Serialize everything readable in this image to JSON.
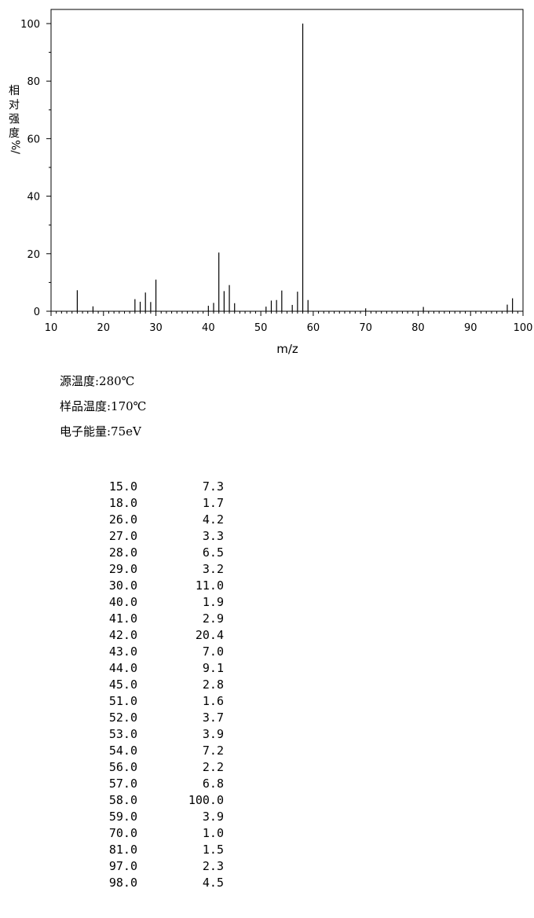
{
  "chart_data": {
    "type": "bar",
    "ylabel": "相对强度/%",
    "xlabel": "m/z",
    "xlim": [
      10,
      100
    ],
    "ylim": [
      0,
      100
    ],
    "x_ticks": [
      "10",
      "20",
      "30",
      "40",
      "50",
      "60",
      "70",
      "80",
      "90",
      "100"
    ],
    "y_ticks": [
      "0",
      "20",
      "40",
      "60",
      "80",
      "100"
    ],
    "grid": false,
    "points": [
      {
        "mz": 15.0,
        "intensity": 7.3
      },
      {
        "mz": 18.0,
        "intensity": 1.7
      },
      {
        "mz": 26.0,
        "intensity": 4.2
      },
      {
        "mz": 27.0,
        "intensity": 3.3
      },
      {
        "mz": 28.0,
        "intensity": 6.5
      },
      {
        "mz": 29.0,
        "intensity": 3.2
      },
      {
        "mz": 30.0,
        "intensity": 11.0
      },
      {
        "mz": 40.0,
        "intensity": 1.9
      },
      {
        "mz": 41.0,
        "intensity": 2.9
      },
      {
        "mz": 42.0,
        "intensity": 20.4
      },
      {
        "mz": 43.0,
        "intensity": 7.0
      },
      {
        "mz": 44.0,
        "intensity": 9.1
      },
      {
        "mz": 45.0,
        "intensity": 2.8
      },
      {
        "mz": 51.0,
        "intensity": 1.6
      },
      {
        "mz": 52.0,
        "intensity": 3.7
      },
      {
        "mz": 53.0,
        "intensity": 3.9
      },
      {
        "mz": 54.0,
        "intensity": 7.2
      },
      {
        "mz": 56.0,
        "intensity": 2.2
      },
      {
        "mz": 57.0,
        "intensity": 6.8
      },
      {
        "mz": 58.0,
        "intensity": 100.0
      },
      {
        "mz": 59.0,
        "intensity": 3.9
      },
      {
        "mz": 70.0,
        "intensity": 1.0
      },
      {
        "mz": 81.0,
        "intensity": 1.5
      },
      {
        "mz": 97.0,
        "intensity": 2.3
      },
      {
        "mz": 98.0,
        "intensity": 4.5
      }
    ]
  },
  "info": {
    "source_temp": "源温度:280℃",
    "sample_temp": "样品温度:170℃",
    "electron_energy": "电子能量:75eV"
  },
  "table": [
    {
      "mz": "15.0",
      "abundance": "7.3"
    },
    {
      "mz": "18.0",
      "abundance": "1.7"
    },
    {
      "mz": "26.0",
      "abundance": "4.2"
    },
    {
      "mz": "27.0",
      "abundance": "3.3"
    },
    {
      "mz": "28.0",
      "abundance": "6.5"
    },
    {
      "mz": "29.0",
      "abundance": "3.2"
    },
    {
      "mz": "30.0",
      "abundance": "11.0"
    },
    {
      "mz": "40.0",
      "abundance": "1.9"
    },
    {
      "mz": "41.0",
      "abundance": "2.9"
    },
    {
      "mz": "42.0",
      "abundance": "20.4"
    },
    {
      "mz": "43.0",
      "abundance": "7.0"
    },
    {
      "mz": "44.0",
      "abundance": "9.1"
    },
    {
      "mz": "45.0",
      "abundance": "2.8"
    },
    {
      "mz": "51.0",
      "abundance": "1.6"
    },
    {
      "mz": "52.0",
      "abundance": "3.7"
    },
    {
      "mz": "53.0",
      "abundance": "3.9"
    },
    {
      "mz": "54.0",
      "abundance": "7.2"
    },
    {
      "mz": "56.0",
      "abundance": "2.2"
    },
    {
      "mz": "57.0",
      "abundance": "6.8"
    },
    {
      "mz": "58.0",
      "abundance": "100.0"
    },
    {
      "mz": "59.0",
      "abundance": "3.9"
    },
    {
      "mz": "70.0",
      "abundance": "1.0"
    },
    {
      "mz": "81.0",
      "abundance": "1.5"
    },
    {
      "mz": "97.0",
      "abundance": "2.3"
    },
    {
      "mz": "98.0",
      "abundance": "4.5"
    }
  ]
}
